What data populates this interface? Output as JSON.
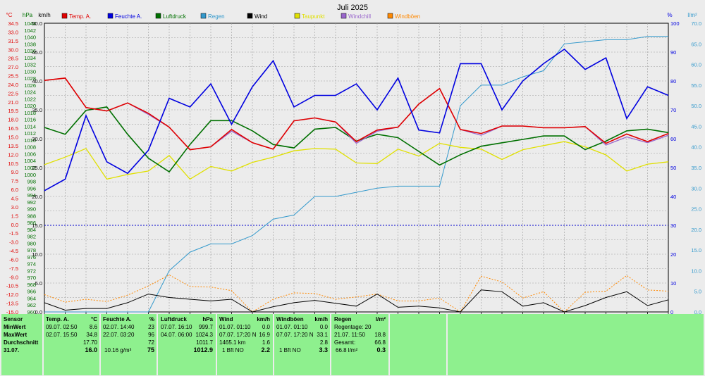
{
  "title": "Juli 2025",
  "axes": {
    "temp_unit": "°C",
    "pressure_unit": "hPa",
    "wind_unit": "km/h",
    "humidity_unit": "%",
    "rain_unit": "l/m²"
  },
  "legend": [
    {
      "label": "Temp. A.",
      "color": "#e00000"
    },
    {
      "label": "Feuchte A.",
      "color": "#0000e0"
    },
    {
      "label": "Luftdruck",
      "color": "#007000"
    },
    {
      "label": "Regen",
      "color": "#3399cc"
    },
    {
      "label": "Wind",
      "color": "#000000"
    },
    {
      "label": "Taupunkt",
      "color": "#e0e000"
    },
    {
      "label": "Windchill",
      "color": "#9966cc"
    },
    {
      "label": "Windböen",
      "color": "#ff8800"
    }
  ],
  "chart_data": {
    "type": "line",
    "x": [
      1,
      2,
      3,
      4,
      5,
      6,
      7,
      8,
      9,
      10,
      11,
      12,
      13,
      14,
      15,
      16,
      17,
      18,
      19,
      20,
      21,
      22,
      23,
      24,
      25,
      26,
      27,
      28,
      29,
      30,
      31
    ],
    "temp_ticks": [
      "34.5",
      "33.0",
      "31.5",
      "30.0",
      "28.5",
      "27.0",
      "25.5",
      "24.0",
      "22.5",
      "21.0",
      "19.5",
      "18.0",
      "16.5",
      "15.0",
      "13.5",
      "12.0",
      "10.5",
      "9.0",
      "7.5",
      "6.0",
      "4.5",
      "3.0",
      "1.5",
      "0.0",
      "-1.5",
      "-3.0",
      "-4.5",
      "-6.0",
      "-7.5",
      "-9.0",
      "-10.5",
      "-12.0",
      "-13.5",
      "-15.0"
    ],
    "pressure_ticks": [
      "1044",
      "1042",
      "1040",
      "1038",
      "1036",
      "1034",
      "1032",
      "1030",
      "1028",
      "1026",
      "1024",
      "1022",
      "1020",
      "1018",
      "1016",
      "1014",
      "1012",
      "1010",
      "1008",
      "1006",
      "1004",
      "1002",
      "1000",
      "998",
      "996",
      "994",
      "992",
      "990",
      "988",
      "986",
      "984",
      "982",
      "980",
      "978",
      "976",
      "974",
      "972",
      "970",
      "968",
      "966",
      "964",
      "962",
      "960"
    ],
    "wind_ticks": [
      "50.0",
      "45.0",
      "40.0",
      "35.0",
      "30.0",
      "25.0",
      "20.0",
      "15.0",
      "10.0",
      "5.0",
      "0.0"
    ],
    "humidity_ticks": [
      "100",
      "90",
      "80",
      "70",
      "60",
      "50",
      "40",
      "30",
      "20",
      "10",
      "0"
    ],
    "rain_ticks": [
      "70.0",
      "65.0",
      "60.0",
      "55.0",
      "50.0",
      "45.0",
      "40.0",
      "35.0",
      "30.0",
      "25.0",
      "20.0",
      "15.0",
      "10.0",
      "5.0",
      "0.0"
    ],
    "ylim_temp": [
      -15,
      35.0
    ],
    "ylim_wind": [
      0,
      50
    ],
    "ylim_humidity": [
      0,
      100
    ],
    "ylim_rain": [
      0,
      70
    ],
    "zero_line_temp": 0,
    "series": [
      {
        "name": "Temp. A.",
        "axis": "temp",
        "color": "#e00000",
        "values": [
          25.1,
          25.5,
          20.4,
          19.8,
          21.2,
          19.4,
          17.0,
          13.1,
          13.6,
          16.6,
          14.3,
          13.2,
          18.1,
          18.6,
          17.9,
          14.5,
          16.5,
          17.0,
          21.0,
          23.7,
          16.6,
          15.9,
          17.2,
          17.2,
          16.9,
          16.9,
          17.1,
          14.2,
          15.8,
          14.5,
          15.9
        ]
      },
      {
        "name": "Feuchte A.",
        "axis": "humidity",
        "color": "#0000e0",
        "values": [
          42,
          46,
          68,
          52,
          48,
          56,
          74,
          71,
          79,
          65,
          78,
          87,
          71,
          75,
          75,
          79,
          70,
          81,
          63,
          62,
          86,
          86,
          70,
          80,
          86,
          91,
          84,
          88,
          67,
          78,
          75
        ]
      },
      {
        "name": "Luftdruck",
        "axis": "pressure",
        "color": "#007000",
        "values": [
          1014.0,
          1012.0,
          1019.0,
          1020.0,
          1012.0,
          1005.0,
          1001.0,
          1009.0,
          1016.0,
          1016.0,
          1013.0,
          1009.0,
          1008.0,
          1013.5,
          1014.0,
          1010.0,
          1012.0,
          1011.0,
          1007.0,
          1003.0,
          1006.0,
          1008.5,
          1009.5,
          1010.5,
          1011.5,
          1011.5,
          1007.5,
          1010.0,
          1013.0,
          1013.5,
          1012.5
        ]
      },
      {
        "name": "Regen",
        "axis": "rain",
        "color": "#3399cc",
        "values": [
          0,
          0,
          0,
          0,
          0,
          0,
          10,
          14.5,
          16.5,
          16.5,
          18.5,
          22.5,
          23.5,
          28,
          28,
          29,
          30,
          30.5,
          30.5,
          30.5,
          50,
          55,
          55,
          57,
          58.5,
          65,
          65.5,
          66,
          66,
          66.8,
          66.8
        ]
      },
      {
        "name": "Wind",
        "axis": "wind",
        "color": "#000000",
        "values": [
          1.6,
          0.3,
          0.6,
          0.6,
          1.6,
          3.1,
          2.5,
          2.2,
          1.9,
          2.2,
          0.0,
          0.9,
          1.6,
          2.0,
          1.5,
          1.0,
          3.1,
          0.8,
          1.0,
          0.7,
          0.0,
          3.8,
          3.5,
          1.0,
          1.6,
          0.0,
          1.1,
          2.5,
          3.5,
          1.1,
          2.1
        ]
      },
      {
        "name": "Taupunkt",
        "axis": "temp",
        "color": "#e0e000",
        "values": [
          10.5,
          11.8,
          13.3,
          8.0,
          8.8,
          9.4,
          12.1,
          8.0,
          10.2,
          9.4,
          10.9,
          11.8,
          12.9,
          13.3,
          13.2,
          10.8,
          10.7,
          13.2,
          12.0,
          14.2,
          13.5,
          13.2,
          11.4,
          13.1,
          13.8,
          14.5,
          13.6,
          12.2,
          9.4,
          10.6,
          11.0
        ]
      },
      {
        "name": "Windchill",
        "axis": "temp",
        "color": "#9966cc",
        "values": [
          25.1,
          25.5,
          20.4,
          19.8,
          21.2,
          19.2,
          17.0,
          13.1,
          13.6,
          16.3,
          14.3,
          13.2,
          18.1,
          18.6,
          17.9,
          14.2,
          16.3,
          17.0,
          21.0,
          23.7,
          16.6,
          15.6,
          17.2,
          17.2,
          16.9,
          16.9,
          17.1,
          13.9,
          15.3,
          14.3,
          15.6
        ]
      },
      {
        "name": "Windböen",
        "axis": "wind",
        "color": "#ff8800",
        "values": [
          3.0,
          1.7,
          2.2,
          1.8,
          2.9,
          4.5,
          6.4,
          4.4,
          4.3,
          3.7,
          0.0,
          2.2,
          3.3,
          3.2,
          2.2,
          2.6,
          3.1,
          1.9,
          1.9,
          2.4,
          0.0,
          6.2,
          5.2,
          2.4,
          3.5,
          0.0,
          3.4,
          3.6,
          6.3,
          3.8,
          3.6
        ]
      }
    ]
  },
  "marks": {
    "x11_symbol": "○",
    "x25_symbol": "●"
  },
  "stats": {
    "sensor": {
      "h0": "Sensor",
      "r1": "MinWert",
      "r2": "MaxWert",
      "r3": "Durchschnitt",
      "r4": "31.07."
    },
    "temp": {
      "h": "Temp. A.",
      "u": "°C",
      "r1a": "09.07.  02:50",
      "r1b": "8.6",
      "r2a": "02.07.  15:50",
      "r2b": "34.8",
      "r3b": "17.70",
      "r4b": "16.0"
    },
    "hum": {
      "h": "Feuchte A.",
      "u": "%",
      "r1a": "02.07.  14:40",
      "r1b": "23",
      "r2a": "22.07.  03:20",
      "r2b": "96",
      "r3b": "72",
      "r4a": "10.16 g/m³",
      "r4b": "75"
    },
    "press": {
      "h": "Luftdruck",
      "u": "hPa",
      "r1a": "07.07.  16:10",
      "r1b": "999.7",
      "r2a": "04.07.  06:00",
      "r2b": "1024.3",
      "r3b": "1011.7",
      "r4b": "1012.9"
    },
    "wind": {
      "h": "Wind",
      "u": "km/h",
      "r1a": "01.07.  01:10",
      "r1b": "0.0",
      "r2a": "07.07.  17:20  N",
      "r2b": "16.9",
      "r3a": "1465.1 km",
      "r3b": "1.6",
      "r4a": "1 Bft NO",
      "r4b": "2.2"
    },
    "gust": {
      "h": "Windböen",
      "u": "km/h",
      "r1a": "01.07.  01:10",
      "r1b": "0.0",
      "r2a": "07.07.  17:20  N",
      "r2b": "33.1",
      "r3b": "2.8",
      "r4a": "1 Bft NO",
      "r4b": "3.3"
    },
    "rain": {
      "h": "Regen",
      "u": "l/m²",
      "r1a": "Regentage: 20",
      "r2a": "21.07.  11:50",
      "r2b": "18.8",
      "r3a": "Gesamt:",
      "r3b": "66.8",
      "r4a": "66.8 l/m²",
      "r4b": "0.3"
    }
  }
}
